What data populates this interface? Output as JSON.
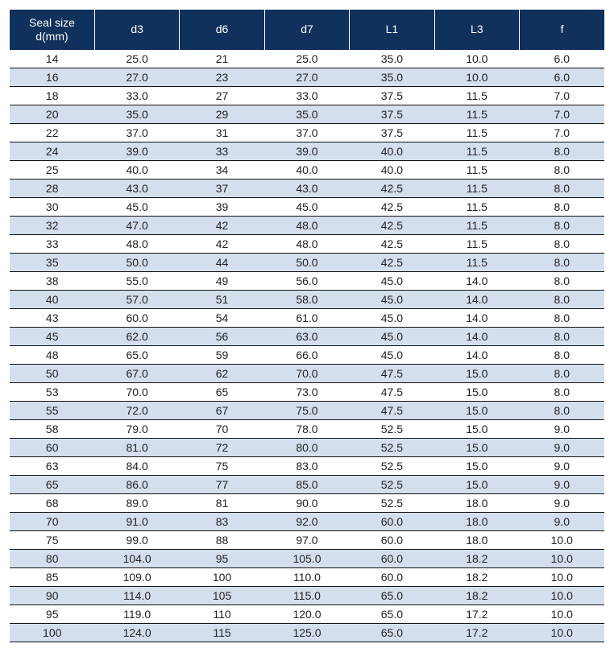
{
  "table": {
    "type": "table",
    "header_bg": "#10315b",
    "header_fg": "#ffffff",
    "row_bg": "#ffffff",
    "row_alt_bg": "#d3dfed",
    "border_color": "#111111",
    "font_family": "Arial",
    "font_size_header": 14,
    "font_size_cell": 14,
    "columns": [
      {
        "label": "Seal size\nd(mm)",
        "align": "center",
        "width_pct": 14.2
      },
      {
        "label": "d3",
        "align": "center",
        "width_pct": 14.2
      },
      {
        "label": "d6",
        "align": "center",
        "width_pct": 14.2
      },
      {
        "label": "d7",
        "align": "center",
        "width_pct": 14.2
      },
      {
        "label": "L1",
        "align": "center",
        "width_pct": 14.2
      },
      {
        "label": "L3",
        "align": "center",
        "width_pct": 14.2
      },
      {
        "label": "f",
        "align": "center",
        "width_pct": 14.2
      }
    ],
    "rows": [
      [
        "14",
        "25.0",
        "21",
        "25.0",
        "35.0",
        "10.0",
        "6.0"
      ],
      [
        "16",
        "27.0",
        "23",
        "27.0",
        "35.0",
        "10.0",
        "6.0"
      ],
      [
        "18",
        "33.0",
        "27",
        "33.0",
        "37.5",
        "11.5",
        "7.0"
      ],
      [
        "20",
        "35.0",
        "29",
        "35.0",
        "37.5",
        "11.5",
        "7.0"
      ],
      [
        "22",
        "37.0",
        "31",
        "37.0",
        "37.5",
        "11.5",
        "7.0"
      ],
      [
        "24",
        "39.0",
        "33",
        "39.0",
        "40.0",
        "11.5",
        "8.0"
      ],
      [
        "25",
        "40.0",
        "34",
        "40.0",
        "40.0",
        "11.5",
        "8.0"
      ],
      [
        "28",
        "43.0",
        "37",
        "43.0",
        "42.5",
        "11.5",
        "8.0"
      ],
      [
        "30",
        "45.0",
        "39",
        "45.0",
        "42.5",
        "11.5",
        "8.0"
      ],
      [
        "32",
        "47.0",
        "42",
        "48.0",
        "42.5",
        "11.5",
        "8.0"
      ],
      [
        "33",
        "48.0",
        "42",
        "48.0",
        "42.5",
        "11.5",
        "8.0"
      ],
      [
        "35",
        "50.0",
        "44",
        "50.0",
        "42.5",
        "11.5",
        "8.0"
      ],
      [
        "38",
        "55.0",
        "49",
        "56.0",
        "45.0",
        "14.0",
        "8.0"
      ],
      [
        "40",
        "57.0",
        "51",
        "58.0",
        "45.0",
        "14.0",
        "8.0"
      ],
      [
        "43",
        "60.0",
        "54",
        "61.0",
        "45.0",
        "14.0",
        "8.0"
      ],
      [
        "45",
        "62.0",
        "56",
        "63.0",
        "45.0",
        "14.0",
        "8.0"
      ],
      [
        "48",
        "65.0",
        "59",
        "66.0",
        "45.0",
        "14.0",
        "8.0"
      ],
      [
        "50",
        "67.0",
        "62",
        "70.0",
        "47.5",
        "15.0",
        "8.0"
      ],
      [
        "53",
        "70.0",
        "65",
        "73.0",
        "47.5",
        "15.0",
        "8.0"
      ],
      [
        "55",
        "72.0",
        "67",
        "75.0",
        "47.5",
        "15.0",
        "8.0"
      ],
      [
        "58",
        "79.0",
        "70",
        "78.0",
        "52.5",
        "15.0",
        "9.0"
      ],
      [
        "60",
        "81.0",
        "72",
        "80.0",
        "52.5",
        "15.0",
        "9.0"
      ],
      [
        "63",
        "84.0",
        "75",
        "83.0",
        "52.5",
        "15.0",
        "9.0"
      ],
      [
        "65",
        "86.0",
        "77",
        "85.0",
        "52.5",
        "15.0",
        "9.0"
      ],
      [
        "68",
        "89.0",
        "81",
        "90.0",
        "52.5",
        "18.0",
        "9.0"
      ],
      [
        "70",
        "91.0",
        "83",
        "92.0",
        "60.0",
        "18.0",
        "9.0"
      ],
      [
        "75",
        "99.0",
        "88",
        "97.0",
        "60.0",
        "18.0",
        "10.0"
      ],
      [
        "80",
        "104.0",
        "95",
        "105.0",
        "60.0",
        "18.2",
        "10.0"
      ],
      [
        "85",
        "109.0",
        "100",
        "110.0",
        "60.0",
        "18.2",
        "10.0"
      ],
      [
        "90",
        "114.0",
        "105",
        "115.0",
        "65.0",
        "18.2",
        "10.0"
      ],
      [
        "95",
        "119.0",
        "110",
        "120.0",
        "65.0",
        "17.2",
        "10.0"
      ],
      [
        "100",
        "124.0",
        "115",
        "125.0",
        "65.0",
        "17.2",
        "10.0"
      ]
    ]
  }
}
